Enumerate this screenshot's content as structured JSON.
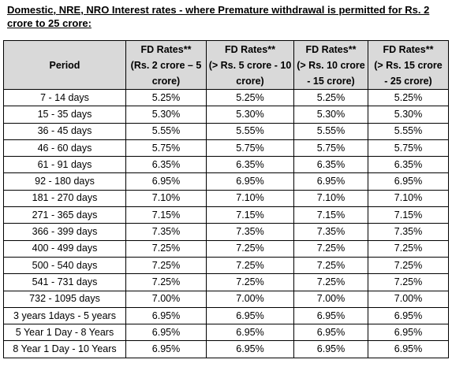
{
  "title": "Domestic, NRE, NRO Interest rates - where Premature withdrawal is permitted for  Rs. 2 crore to 25 crore:",
  "table": {
    "headers": [
      {
        "lines": [
          "Period"
        ]
      },
      {
        "lines": [
          "FD Rates**",
          "(Rs. 2 crore – 5",
          "crore)"
        ]
      },
      {
        "lines": [
          "FD Rates**",
          "(> Rs. 5 crore - 10",
          "crore)"
        ]
      },
      {
        "lines": [
          "FD Rates**",
          "(> Rs. 10 crore",
          "- 15 crore)"
        ]
      },
      {
        "lines": [
          "FD Rates**",
          "(> Rs. 15 crore",
          "- 25 crore)"
        ]
      }
    ],
    "rows": [
      {
        "period": "7 - 14 days",
        "rates": [
          "5.25%",
          "5.25%",
          "5.25%",
          "5.25%"
        ]
      },
      {
        "period": "15 - 35 days",
        "rates": [
          "5.30%",
          "5.30%",
          "5.30%",
          "5.30%"
        ]
      },
      {
        "period": "36 - 45 days",
        "rates": [
          "5.55%",
          "5.55%",
          "5.55%",
          "5.55%"
        ]
      },
      {
        "period": "46 - 60 days",
        "rates": [
          "5.75%",
          "5.75%",
          "5.75%",
          "5.75%"
        ]
      },
      {
        "period": "61 - 91 days",
        "rates": [
          "6.35%",
          "6.35%",
          "6.35%",
          "6.35%"
        ]
      },
      {
        "period": "92 - 180 days",
        "rates": [
          "6.95%",
          "6.95%",
          "6.95%",
          "6.95%"
        ]
      },
      {
        "period": "181 - 270 days",
        "rates": [
          "7.10%",
          "7.10%",
          "7.10%",
          "7.10%"
        ]
      },
      {
        "period": "271 - 365 days",
        "rates": [
          "7.15%",
          "7.15%",
          "7.15%",
          "7.15%"
        ]
      },
      {
        "period": "366 - 399 days",
        "rates": [
          "7.35%",
          "7.35%",
          "7.35%",
          "7.35%"
        ]
      },
      {
        "period": "400 - 499 days",
        "rates": [
          "7.25%",
          "7.25%",
          "7.25%",
          "7.25%"
        ]
      },
      {
        "period": "500 - 540 days",
        "rates": [
          "7.25%",
          "7.25%",
          "7.25%",
          "7.25%"
        ]
      },
      {
        "period": "541 - 731 days",
        "rates": [
          "7.25%",
          "7.25%",
          "7.25%",
          "7.25%"
        ]
      },
      {
        "period": "732 - 1095 days",
        "rates": [
          "7.00%",
          "7.00%",
          "7.00%",
          "7.00%"
        ]
      },
      {
        "period": "3 years 1days - 5 years",
        "rates": [
          "6.95%",
          "6.95%",
          "6.95%",
          "6.95%"
        ]
      },
      {
        "period": "5 Year 1 Day - 8 Years",
        "rates": [
          "6.95%",
          "6.95%",
          "6.95%",
          "6.95%"
        ]
      },
      {
        "period": "8 Year 1 Day - 10 Years",
        "rates": [
          "6.95%",
          "6.95%",
          "6.95%",
          "6.95%"
        ]
      }
    ]
  },
  "colors": {
    "header_background": "#d9d9d9",
    "border": "#000000",
    "text": "#000000"
  }
}
